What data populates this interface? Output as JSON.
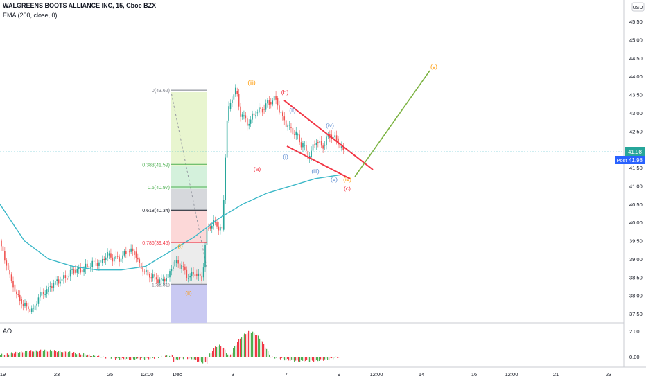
{
  "header": {
    "symbol_line": "WALGREENS BOOTS ALLIANCE INC, 15, Cboe BZX",
    "indicator_line": "EMA (200, close, 0)",
    "currency": "USD"
  },
  "price_axis": {
    "ticks": [
      "45.50",
      "45.00",
      "44.50",
      "44.00",
      "43.50",
      "43.00",
      "42.50",
      "42.00",
      "41.50",
      "41.00",
      "40.50",
      "40.00",
      "39.50",
      "39.00",
      "38.50",
      "38.00",
      "37.50"
    ],
    "last_price": "41.98",
    "post_label": "Post",
    "post_price": "41.98"
  },
  "time_axis": {
    "ticks": [
      "19",
      "23",
      "25",
      "12:00",
      "Dec",
      "3",
      "7",
      "9",
      "12:00",
      "14",
      "16",
      "12:00",
      "21",
      "23"
    ]
  },
  "ao_pane": {
    "label": "AO",
    "ticks": [
      "2.00",
      "0.00"
    ]
  },
  "fib_levels": [
    {
      "label": "0(43.62)",
      "value": 43.62,
      "color": "#787b86"
    },
    {
      "label": "0.383(41.59)",
      "value": 41.59,
      "color": "#4caf50"
    },
    {
      "label": "0.5(40.97)",
      "value": 40.97,
      "color": "#4caf50"
    },
    {
      "label": "0.618(40.34)",
      "value": 40.34,
      "color": "#131722"
    },
    {
      "label": "0.786(39.45)",
      "value": 39.45,
      "color": "#f23645"
    },
    {
      "label": "1(38.31)",
      "value": 38.31,
      "color": "#787b86"
    }
  ],
  "wave_labels": [
    {
      "text": "(iii)",
      "color": "#ff9800"
    },
    {
      "text": "(b)",
      "color": "#f23645"
    },
    {
      "text": "(ii)",
      "color": "#5b8bd0"
    },
    {
      "text": "(iv)",
      "color": "#5b8bd0"
    },
    {
      "text": "(a)",
      "color": "#f23645"
    },
    {
      "text": "(i)",
      "color": "#5b8bd0"
    },
    {
      "text": "(iii)",
      "color": "#5b8bd0"
    },
    {
      "text": "(iv)",
      "color": "#ff9800"
    },
    {
      "text": "(v)",
      "color": "#5b8bd0"
    },
    {
      "text": "(c)",
      "color": "#f23645"
    },
    {
      "text": "(v)",
      "color": "#ff9800"
    },
    {
      "text": "(i)",
      "color": "#ff9800"
    },
    {
      "text": "(ii)",
      "color": "#ff9800"
    }
  ],
  "colors": {
    "up": "#26a69a",
    "down": "#ef5350",
    "ema": "#3cb8c8",
    "wedge": "#f23645",
    "projection": "#7cb342",
    "ao_up": "#4caf50",
    "ao_down": "#f23645",
    "post_badge": "#2962ff"
  },
  "chart_data": {
    "type": "candlestick",
    "title": "WALGREENS BOOTS ALLIANCE INC, 15, Cboe BZX",
    "ylim": [
      37.3,
      45.8
    ],
    "ema_label": "EMA (200, close, 0)",
    "last_price": 41.98,
    "approx_closes": [
      38.9,
      38.3,
      37.9,
      37.7,
      37.6,
      38.0,
      38.1,
      38.3,
      38.4,
      38.5,
      38.7,
      38.7,
      38.8,
      38.9,
      38.9,
      39.1,
      39.0,
      39.0,
      39.2,
      39.2,
      38.8,
      38.6,
      38.5,
      38.4,
      38.5,
      38.9,
      38.8,
      38.5,
      38.6,
      38.5,
      39.9,
      40.0,
      39.8,
      43.1,
      43.6,
      42.9,
      42.7,
      43.0,
      43.1,
      43.3,
      43.4,
      42.9,
      42.6,
      42.4,
      42.1,
      41.8,
      42.2,
      42.1,
      42.4,
      42.3,
      41.98
    ],
    "ema_approx": [
      40.5,
      39.5,
      39.0,
      38.8,
      38.7,
      38.7,
      38.8,
      39.2,
      39.6,
      40.1,
      40.5,
      40.8,
      41.0,
      41.2,
      41.3
    ],
    "projection_target": "(v)"
  }
}
